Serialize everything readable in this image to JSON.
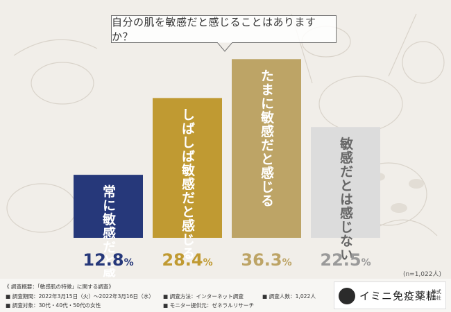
{
  "title": "自分の肌を敏感だと感じることはありますか？",
  "sample_note": "(n=1,022人)",
  "chart_data": {
    "type": "bar",
    "categories": [
      "常に敏感だと感じる",
      "しばしば敏感だと感じる",
      "たまに敏感だと感じる",
      "敏感だとは感じない"
    ],
    "values": [
      12.8,
      28.4,
      36.3,
      22.5
    ],
    "value_labels": [
      "12.8",
      "28.4",
      "36.3",
      "22.5"
    ],
    "unit": "%",
    "colors": [
      "#26387a",
      "#c09a32",
      "#bda466",
      "#dcdcdc"
    ],
    "label_colors": [
      "#ffffff",
      "#ffffff",
      "#ffffff",
      "#666666"
    ],
    "value_colors": [
      "#26387a",
      "#c09a32",
      "#bda466",
      "#9a9a9a"
    ]
  },
  "footer": {
    "overview_heading": "《 調査概要：「敏感肌の特徴」に関する調査》",
    "items": [
      "調査期間：2022年3月15日（火）～2022年3月16日（水）",
      "調査方法：インターネット調査",
      "調査人数：1,022人",
      "調査対象：30代・40代・50代の女性",
      "モニター提供元：ゼネラルリサーチ"
    ],
    "bullet": "■"
  },
  "logo": {
    "name": "イミニ免疫薬粧",
    "sub": "株式会社"
  }
}
